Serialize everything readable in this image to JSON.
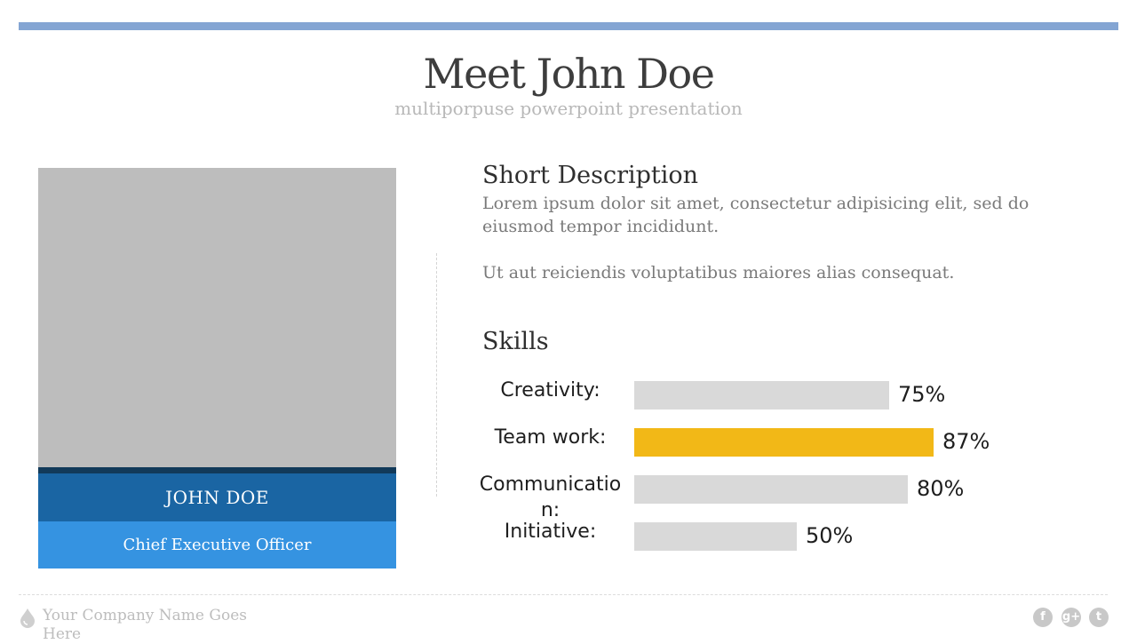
{
  "slide": {
    "title": "Meet John Doe",
    "subtitle": "multiporpuse powerpoint presentation"
  },
  "profile": {
    "name": "JOHN DOE",
    "role": "Chief Executive Officer"
  },
  "description": {
    "heading": "Short Description",
    "paragraph1": "Lorem ipsum dolor sit amet, consectetur adipisicing elit, sed do eiusmod tempor incididunt.",
    "paragraph2": "Ut aut reiciendis voluptatibus maiores alias consequat."
  },
  "skills": {
    "heading": "Skills",
    "items": [
      {
        "label": "Creativity:",
        "value": 75,
        "value_label": "75%",
        "color": "#d9d9d9"
      },
      {
        "label": "Team work:",
        "value": 87,
        "value_label": "87%",
        "color": "#f2b817"
      },
      {
        "label": "Communication:",
        "value": 80,
        "value_label": "80%",
        "color": "#d9d9d9"
      },
      {
        "label": "Initiative:",
        "value": 50,
        "value_label": "50%",
        "color": "#d9d9d9"
      }
    ]
  },
  "footer": {
    "company": "Your Company Name Goes Here",
    "social": [
      {
        "icon": "facebook-icon",
        "glyph": "f"
      },
      {
        "icon": "google-plus-icon",
        "glyph": "g+"
      },
      {
        "icon": "twitter-icon",
        "glyph": "t"
      }
    ]
  },
  "colors": {
    "accent_bar": "#84a5d3",
    "name_box": "#1a65a3",
    "role_box": "#3593e1",
    "highlight": "#f2b817"
  }
}
